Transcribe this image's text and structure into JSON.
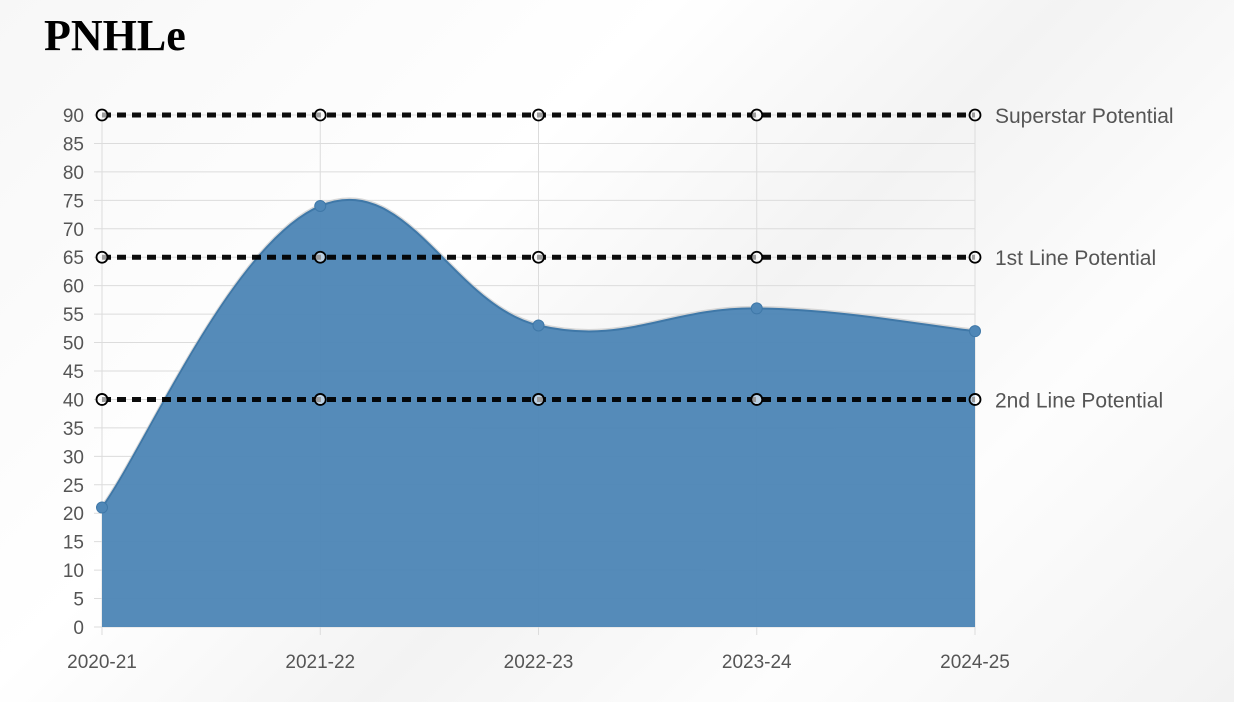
{
  "title": "PNHLe",
  "chart_data": {
    "type": "area",
    "categories": [
      "2020-21",
      "2021-22",
      "2022-23",
      "2023-24",
      "2024-25"
    ],
    "series": [
      {
        "values": [
          21,
          74,
          53,
          56,
          52
        ],
        "color": "#4f87b7"
      }
    ],
    "reference_lines": [
      {
        "name": "Superstar Potential",
        "value": 90
      },
      {
        "name": "1st Line Potential",
        "value": 65
      },
      {
        "name": "2nd Line Potential",
        "value": 40
      }
    ],
    "ylim": [
      0,
      90
    ],
    "ytick_step": 5,
    "grid": true,
    "xlabel": "",
    "ylabel": ""
  }
}
